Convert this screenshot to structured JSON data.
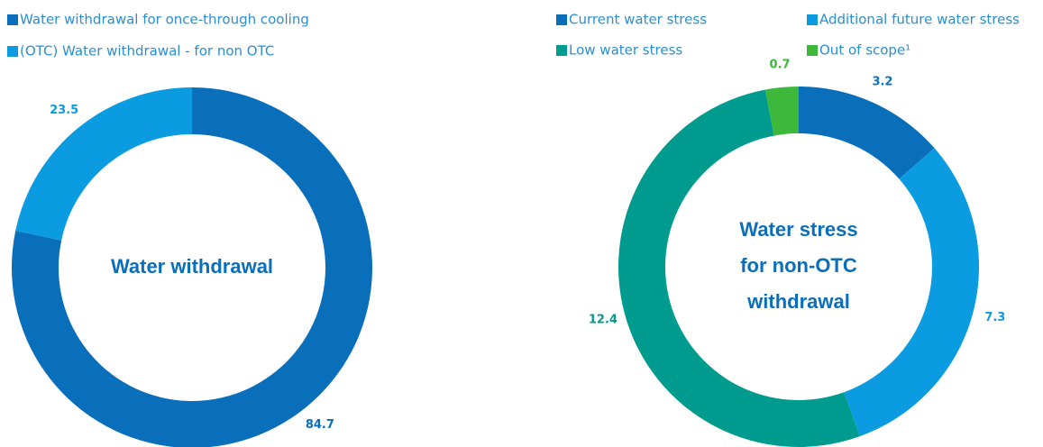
{
  "chart_data": [
    {
      "type": "donut",
      "title": [
        "Water withdrawal"
      ],
      "categories": [
        "Water withdrawal for once-through cooling",
        "(OTC) Water withdrawal - for non OTC"
      ],
      "values": [
        84.7,
        23.5
      ],
      "colors": [
        "#0a6fba",
        "#0a9be0"
      ]
    },
    {
      "type": "donut",
      "title": [
        "Water stress",
        "for non-OTC",
        "withdrawal"
      ],
      "categories": [
        "Current water stress",
        "Additional future water stress",
        "Low water stress",
        "Out of scope¹"
      ],
      "values": [
        3.2,
        7.3,
        12.4,
        0.7
      ],
      "colors": [
        "#0a6fba",
        "#0a9be0",
        "#009b8f",
        "#3db83a"
      ]
    }
  ]
}
